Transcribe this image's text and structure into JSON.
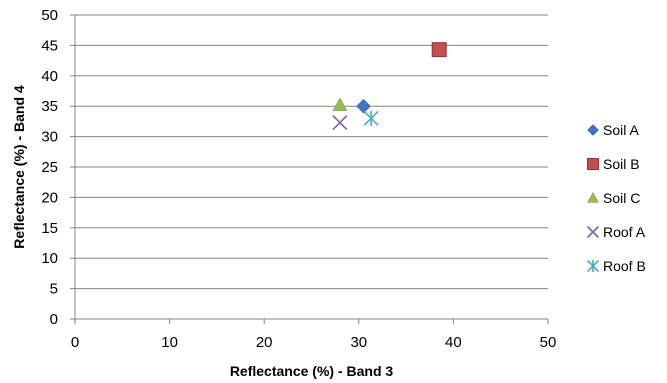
{
  "chart_data": {
    "type": "scatter",
    "title": "",
    "xlabel": "Reflectance (%) - Band 3",
    "ylabel": "Reflectance (%) - Band 4",
    "xlim": [
      0,
      50
    ],
    "ylim": [
      0,
      50
    ],
    "x_ticks": [
      "0",
      "10",
      "20",
      "30",
      "40",
      "50"
    ],
    "y_ticks": [
      "0",
      "5",
      "10",
      "15",
      "20",
      "25",
      "30",
      "35",
      "40",
      "45",
      "50"
    ],
    "grid": "horizontal",
    "legend_position": "right",
    "series": [
      {
        "name": "Soil A",
        "marker": "diamond",
        "color": "#4472C4",
        "x": [
          30.5
        ],
        "y": [
          35
        ]
      },
      {
        "name": "Soil B",
        "marker": "square",
        "color": "#C0504D",
        "x": [
          38.5
        ],
        "y": [
          44.3
        ]
      },
      {
        "name": "Soil C",
        "marker": "triangle",
        "color": "#9BBB59",
        "x": [
          28
        ],
        "y": [
          35.2
        ]
      },
      {
        "name": "Roof A",
        "marker": "x",
        "color": "#8064A2",
        "x": [
          28
        ],
        "y": [
          32.3
        ]
      },
      {
        "name": "Roof B",
        "marker": "star",
        "color": "#4BACC6",
        "x": [
          31.3
        ],
        "y": [
          33
        ]
      }
    ]
  }
}
